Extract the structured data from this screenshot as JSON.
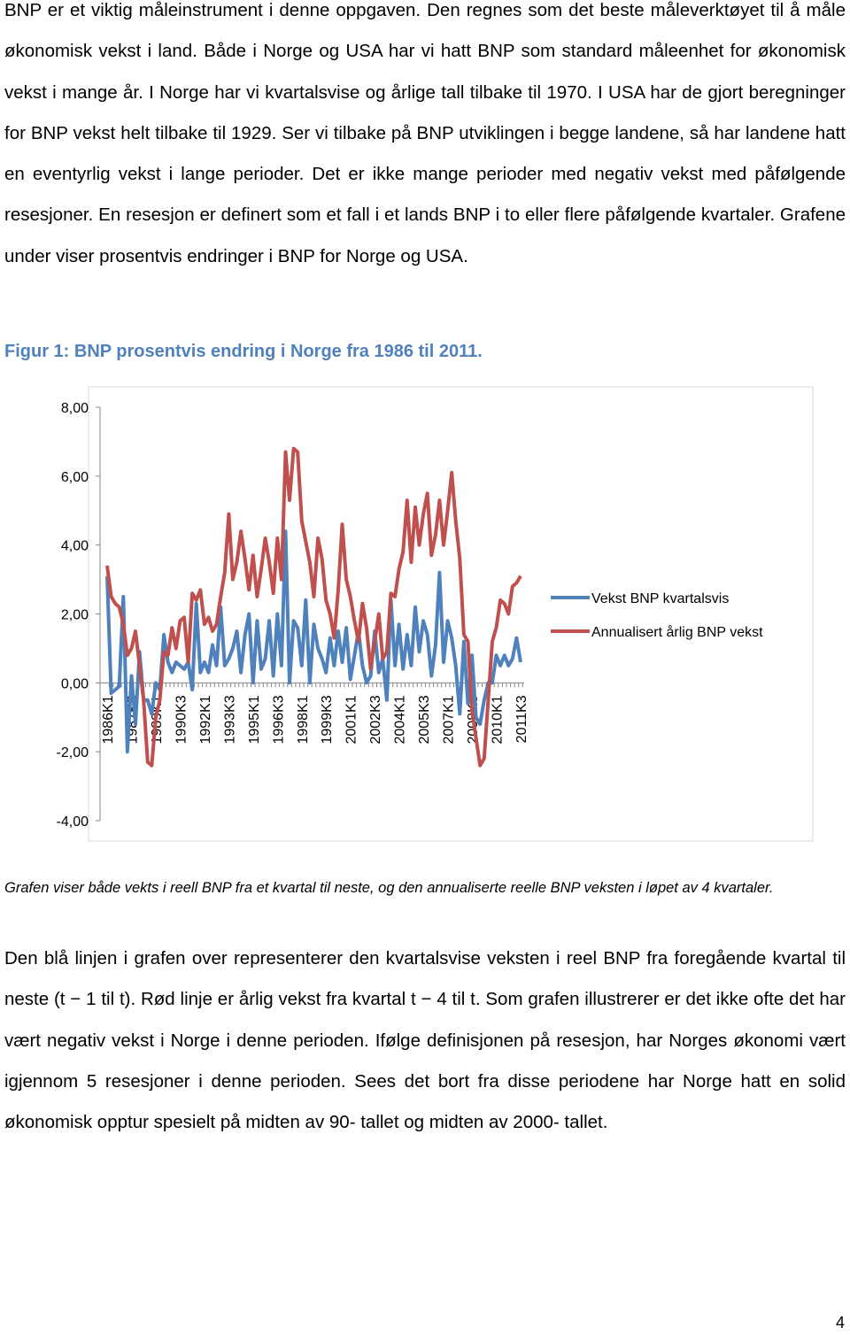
{
  "paragraphs": [
    "BNP er et viktig måleinstrument i denne oppgaven. Den regnes som det beste måleverktøyet til å måle økonomisk vekst i land. Både i Norge og USA har vi hatt BNP som standard måleenhet for økonomisk vekst i mange år. I Norge har vi kvartalsvise og årlige tall tilbake til 1970. I USA har de gjort beregninger for BNP vekst helt tilbake til 1929. Ser vi tilbake på BNP utviklingen i begge landene, så har landene hatt en eventyrlig vekst i lange perioder. Det er ikke mange perioder med negativ vekst med påfølgende resesjoner. En resesjon er definert som et fall i et lands BNP i to eller flere påfølgende kvartaler. Grafene under viser prosentvis endringer i BNP for Norge og USA.",
    "Den blå linjen i grafen over representerer den kvartalsvise veksten i reel BNP fra foregående kvartal til neste (t − 1 til t). Rød linje er årlig vekst fra kvartal t − 4 til t. Som grafen illustrerer er det ikke ofte det har vært negativ vekst i Norge i denne perioden. Ifølge definisjonen på resesjon, har Norges økonomi vært igjennom 5 resesjoner i denne perioden. Sees det bort fra disse periodene har Norge hatt en solid økonomisk opptur spesielt på midten av 90- tallet og midten av 2000- tallet."
  ],
  "figure_title": "Figur 1: BNP prosentvis endring i Norge fra 1986 til 2011.",
  "caption": "Grafen viser både vekts i reell BNP fra et kvartal til neste, og den annualiserte reelle BNP veksten i løpet av 4 kvartaler.",
  "page_number": "4",
  "chart_data": {
    "type": "line",
    "categories": [
      "1986K1",
      null,
      null,
      null,
      null,
      null,
      "1987K3",
      null,
      null,
      null,
      null,
      null,
      "1989K1",
      null,
      null,
      null,
      null,
      null,
      "1990K3",
      null,
      null,
      null,
      null,
      null,
      "1992K1",
      null,
      null,
      null,
      null,
      null,
      "1993K3",
      null,
      null,
      null,
      null,
      null,
      "1995K1",
      null,
      null,
      null,
      null,
      null,
      "1996K3",
      null,
      null,
      null,
      null,
      null,
      "1998K1",
      null,
      null,
      null,
      null,
      null,
      "1999K3",
      null,
      null,
      null,
      null,
      null,
      "2001K1",
      null,
      null,
      null,
      null,
      null,
      "2002K3",
      null,
      null,
      null,
      null,
      null,
      "2004K1",
      null,
      null,
      null,
      null,
      null,
      "2005K3",
      null,
      null,
      null,
      null,
      null,
      "2007K1",
      null,
      null,
      null,
      null,
      null,
      "2008K3",
      null,
      null,
      null,
      null,
      null,
      "2010K1",
      null,
      null,
      null,
      null,
      null,
      "2011K3"
    ],
    "series": [
      {
        "name": "Vekst BNP kvartalsvis",
        "color": "#4f81bd",
        "values": [
          3.1,
          -0.3,
          -0.2,
          -0.1,
          2.5,
          -2.0,
          0.2,
          -1.2,
          0.9,
          -0.5,
          -0.5,
          -0.9,
          0.0,
          -0.2,
          1.4,
          0.6,
          0.3,
          0.6,
          0.5,
          0.4,
          0.6,
          -0.2,
          2.3,
          0.3,
          0.6,
          0.3,
          1.1,
          0.5,
          2.2,
          0.5,
          0.7,
          1.0,
          1.5,
          0.3,
          1.4,
          2.0,
          0.0,
          1.8,
          0.4,
          0.7,
          1.8,
          0.2,
          2.0,
          0.5,
          4.4,
          0.0,
          1.8,
          1.6,
          0.5,
          2.4,
          0.0,
          1.7,
          1.0,
          0.7,
          0.3,
          1.3,
          0.5,
          1.5,
          0.6,
          1.6,
          0.1,
          0.8,
          1.5,
          0.5,
          0.0,
          0.2,
          1.5,
          0.3,
          0.7,
          -0.5,
          2.4,
          0.5,
          1.7,
          0.4,
          1.4,
          0.5,
          2.2,
          0.9,
          1.8,
          1.4,
          0.2,
          1.1,
          3.2,
          0.6,
          1.8,
          1.3,
          0.5,
          -0.9,
          1.2,
          -0.6,
          0.8,
          -1.0,
          -1.2,
          -0.5,
          0.0,
          0.0,
          0.8,
          0.5,
          0.8,
          0.5,
          0.7,
          1.3,
          0.6
        ]
      },
      {
        "name": "Annualisert årlig BNP vekst",
        "color": "#c0504d",
        "values": [
          3.4,
          2.5,
          2.3,
          2.2,
          1.7,
          0.8,
          1.0,
          1.5,
          0.5,
          -0.5,
          -2.3,
          -2.4,
          -1.0,
          -0.5,
          0.9,
          0.8,
          1.6,
          1.0,
          1.8,
          1.9,
          0.6,
          2.6,
          2.4,
          2.7,
          1.7,
          1.9,
          1.5,
          1.7,
          2.5,
          3.2,
          4.9,
          3.0,
          3.5,
          4.4,
          3.6,
          2.7,
          3.7,
          2.5,
          3.3,
          4.2,
          3.5,
          2.6,
          4.2,
          3.0,
          6.7,
          5.3,
          6.8,
          6.7,
          4.7,
          4.1,
          3.5,
          2.5,
          4.2,
          3.6,
          2.4,
          2.0,
          1.3,
          2.7,
          4.6,
          3.0,
          2.5,
          1.8,
          1.2,
          2.3,
          1.6,
          0.4,
          1.2,
          2.0,
          0.7,
          0.9,
          2.6,
          2.5,
          3.3,
          3.8,
          5.3,
          3.5,
          5.1,
          4.0,
          4.9,
          5.5,
          3.7,
          4.3,
          5.3,
          4.0,
          5.0,
          6.1,
          4.7,
          3.6,
          1.4,
          1.2,
          -0.8,
          -1.6,
          -2.4,
          -2.2,
          -0.5,
          1.2,
          1.6,
          2.4,
          2.3,
          2.0,
          2.8,
          2.9,
          3.1
        ]
      }
    ],
    "ylim": [
      -4,
      8
    ],
    "yticks": [
      {
        "value": -4,
        "label": "-4,00"
      },
      {
        "value": -2,
        "label": "-2,00"
      },
      {
        "value": 0,
        "label": "0,00"
      },
      {
        "value": 2,
        "label": "2,00"
      },
      {
        "value": 4,
        "label": "4,00"
      },
      {
        "value": 6,
        "label": "6,00"
      },
      {
        "value": 8,
        "label": "8,00"
      }
    ],
    "grid": false,
    "legend": "right"
  }
}
